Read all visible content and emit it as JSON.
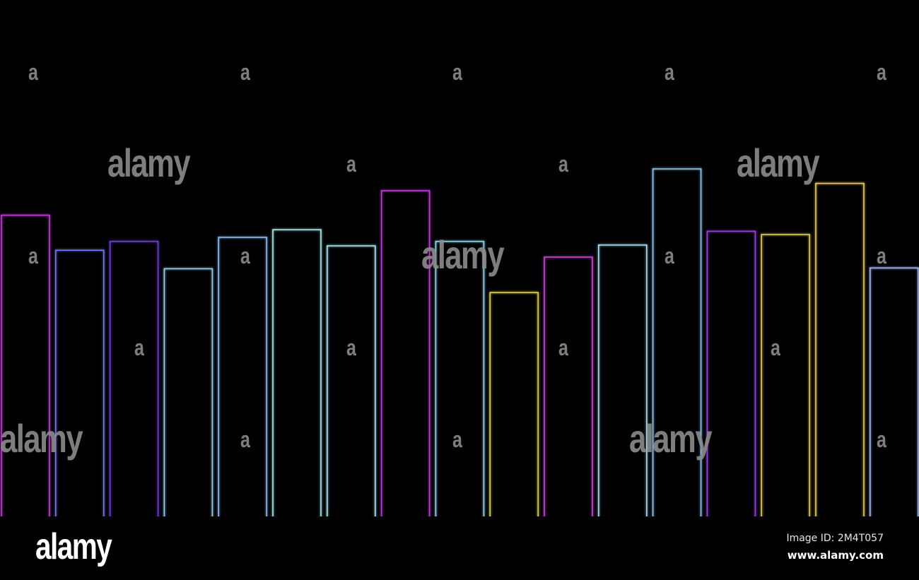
{
  "chart_data": {
    "type": "bar",
    "title": "",
    "xlabel": "",
    "ylabel": "",
    "grid": false,
    "legend": "none",
    "ylim": [
      0,
      100
    ],
    "values": [
      74.8,
      66.1,
      68.3,
      61.5,
      69.3,
      71.2,
      67.2,
      80.9,
      68.3,
      55.6,
      64.4,
      67.4,
      86.3,
      70.8,
      70.0,
      82.7,
      61.7
    ],
    "colors": [
      "#c23bd6",
      "#6f78e8",
      "#6a3ce0",
      "#8fd0ee",
      "#8fb8f2",
      "#a6e6ea",
      "#a2e4f0",
      "#c436e0",
      "#8cd6f0",
      "#e0d048",
      "#c840d8",
      "#a6dcf2",
      "#8cc4ee",
      "#9a3ee6",
      "#e0c850",
      "#e8cc48",
      "#a2b8f2"
    ]
  },
  "watermarks": {
    "small": "a",
    "large": "alamy"
  },
  "footer": {
    "logo": "alamy",
    "image_id": "Image ID: 2M4T057",
    "url": "www.alamy.com"
  }
}
